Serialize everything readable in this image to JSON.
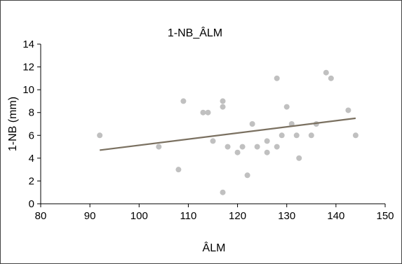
{
  "chart_data": {
    "type": "scatter",
    "title": "1-NB_ÂLM",
    "xlabel": "ÂLM",
    "ylabel": "1-NB (mm)",
    "xlim": [
      80,
      150
    ],
    "ylim": [
      0,
      14
    ],
    "xticks": [
      80,
      90,
      100,
      110,
      120,
      130,
      140,
      150
    ],
    "yticks": [
      0,
      2,
      4,
      6,
      8,
      10,
      12,
      14
    ],
    "grid": false,
    "legend": "none",
    "series": [
      {
        "color": "#c0c0c0",
        "points": [
          [
            92,
            6
          ],
          [
            104,
            5
          ],
          [
            108,
            3
          ],
          [
            109,
            9
          ],
          [
            113,
            8
          ],
          [
            114,
            8
          ],
          [
            115,
            5.5
          ],
          [
            117,
            9
          ],
          [
            117,
            8.5
          ],
          [
            117,
            1
          ],
          [
            118,
            5
          ],
          [
            120,
            4.5
          ],
          [
            121,
            5
          ],
          [
            122,
            2.5
          ],
          [
            123,
            7
          ],
          [
            124,
            5
          ],
          [
            126,
            5.5
          ],
          [
            126,
            4.5
          ],
          [
            128,
            11
          ],
          [
            128,
            5
          ],
          [
            129,
            6
          ],
          [
            130,
            8.5
          ],
          [
            131,
            7
          ],
          [
            132,
            6
          ],
          [
            132.5,
            4
          ],
          [
            135,
            6
          ],
          [
            136,
            7
          ],
          [
            138,
            11.5
          ],
          [
            139,
            11
          ],
          [
            142.5,
            8.2
          ],
          [
            144,
            6
          ]
        ]
      }
    ],
    "trendline": {
      "color": "#7a7060",
      "x": [
        92,
        144
      ],
      "y": [
        4.7,
        7.5
      ]
    }
  }
}
